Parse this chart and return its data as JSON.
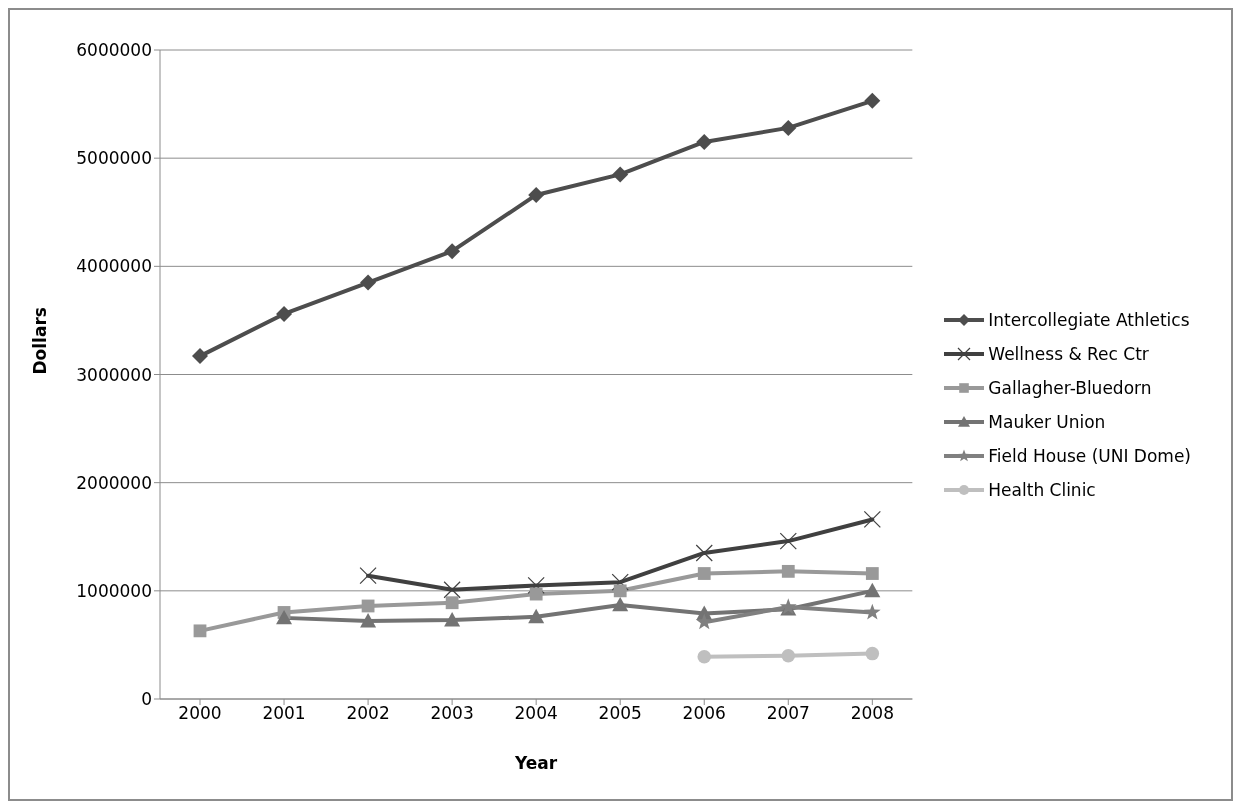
{
  "chart_data": {
    "type": "line",
    "xlabel": "Year",
    "ylabel": "Dollars",
    "categories": [
      "2000",
      "2001",
      "2002",
      "2003",
      "2004",
      "2005",
      "2006",
      "2007",
      "2008"
    ],
    "series": [
      {
        "name": "Intercollegiate Athletics",
        "color": "#4d4d4d",
        "marker": "diamond",
        "values": [
          3170000,
          3560000,
          3850000,
          4140000,
          4660000,
          4850000,
          5150000,
          5280000,
          5530000
        ]
      },
      {
        "name": "Wellness & Rec Ctr",
        "color": "#404040",
        "marker": "cross",
        "values": [
          null,
          null,
          1140000,
          1010000,
          1050000,
          1080000,
          1350000,
          1460000,
          1660000
        ]
      },
      {
        "name": "Gallagher-Bluedorn",
        "color": "#999999",
        "marker": "square",
        "values": [
          630000,
          800000,
          860000,
          890000,
          970000,
          1000000,
          1160000,
          1180000,
          1160000
        ]
      },
      {
        "name": "Mauker Union",
        "color": "#737373",
        "marker": "triangle",
        "values": [
          null,
          750000,
          720000,
          730000,
          760000,
          870000,
          790000,
          830000,
          1000000
        ]
      },
      {
        "name": "Field House (UNI Dome)",
        "color": "#808080",
        "marker": "star",
        "values": [
          null,
          null,
          null,
          null,
          null,
          null,
          710000,
          850000,
          800000
        ]
      },
      {
        "name": "Health Clinic",
        "color": "#bfbfbf",
        "marker": "circle",
        "values": [
          null,
          null,
          null,
          null,
          null,
          null,
          390000,
          400000,
          420000
        ]
      }
    ],
    "ylim": [
      0,
      6000000
    ],
    "yticks": [
      0,
      1000000,
      2000000,
      3000000,
      4000000,
      5000000,
      6000000
    ],
    "grid": "y",
    "legend": "right"
  }
}
